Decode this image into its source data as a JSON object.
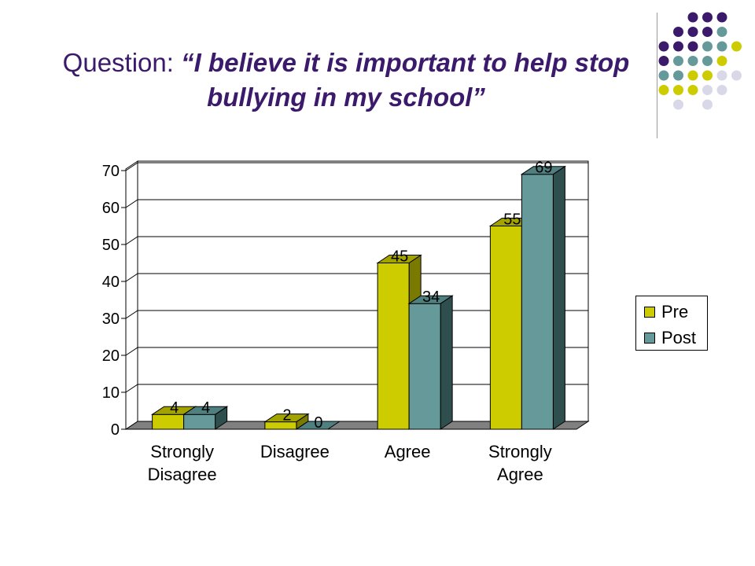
{
  "slide": {
    "title_prefix": "Question: ",
    "title_quote": "“I believe it is important to help stop bullying in my school”"
  },
  "decor": {
    "dot_colors": [
      "#3b1a6b",
      "#669999",
      "#cccc00",
      "#d8d8e8"
    ]
  },
  "chart_data": {
    "type": "bar",
    "style": "3d-clustered-column",
    "categories": [
      "Strongly Disagree",
      "Disagree",
      "Agree",
      "Strongly Agree"
    ],
    "category_labels": [
      [
        "Strongly",
        "Disagree"
      ],
      [
        "Disagree"
      ],
      [
        "Agree"
      ],
      [
        "Strongly",
        "Agree"
      ]
    ],
    "series": [
      {
        "name": "Pre",
        "values": [
          4,
          2,
          45,
          55
        ],
        "color": "#cccc00",
        "side_color": "#7a7a00",
        "top_color": "#a3a300"
      },
      {
        "name": "Post",
        "values": [
          4,
          0,
          34,
          69
        ],
        "color": "#669999",
        "side_color": "#2f4f4f",
        "top_color": "#4f7f7f"
      }
    ],
    "yticks": [
      0,
      10,
      20,
      30,
      40,
      50,
      60,
      70
    ],
    "ylim": [
      0,
      70
    ],
    "grid": true,
    "legend_position": "right",
    "data_labels": true
  }
}
